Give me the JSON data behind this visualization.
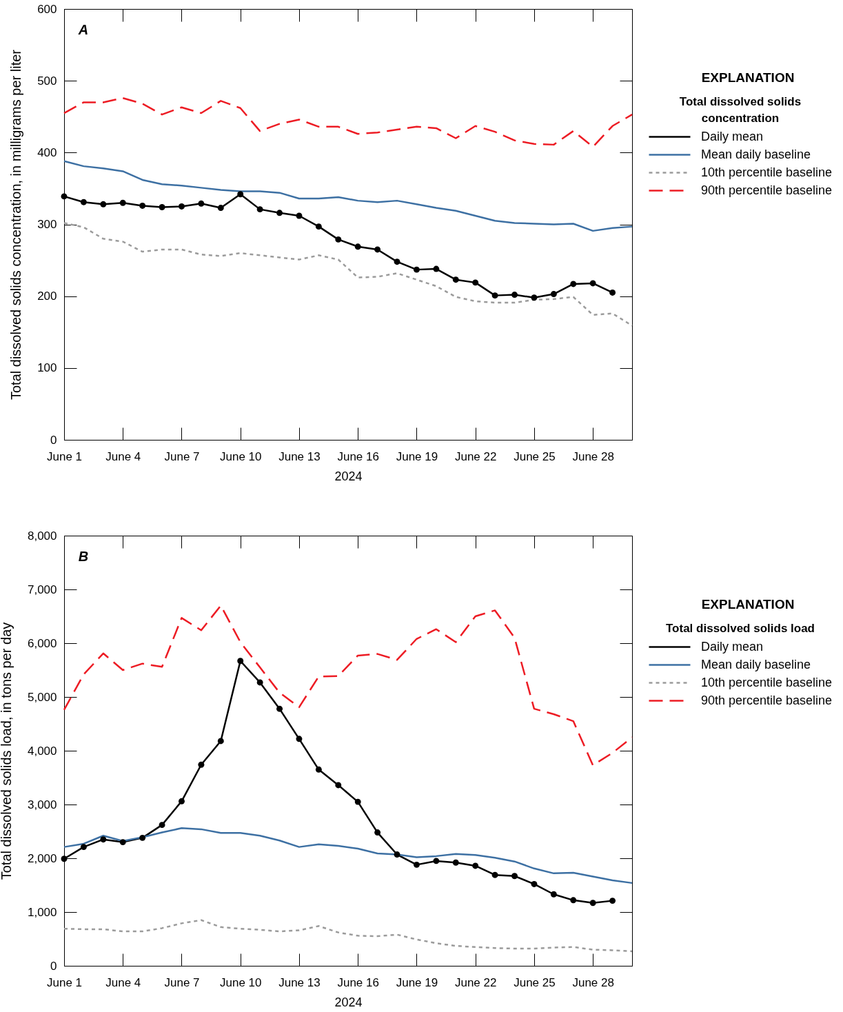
{
  "chart_data": [
    {
      "type": "line",
      "title": "A",
      "xlabel": "2024",
      "ylabel": "Total dissolved solids concentration, in milligrams per liter",
      "legend_title": "Total dissolved solids concentration",
      "annotations": [
        "EXPLANATION"
      ],
      "legend": "right",
      "grid": false,
      "x": [
        "2024-06-01",
        "2024-06-02",
        "2024-06-03",
        "2024-06-04",
        "2024-06-05",
        "2024-06-06",
        "2024-06-07",
        "2024-06-08",
        "2024-06-09",
        "2024-06-10",
        "2024-06-11",
        "2024-06-12",
        "2024-06-13",
        "2024-06-14",
        "2024-06-15",
        "2024-06-16",
        "2024-06-17",
        "2024-06-18",
        "2024-06-19",
        "2024-06-20",
        "2024-06-21",
        "2024-06-22",
        "2024-06-23",
        "2024-06-24",
        "2024-06-25",
        "2024-06-26",
        "2024-06-27",
        "2024-06-28",
        "2024-06-29",
        "2024-06-30"
      ],
      "xlim": [
        "2024-06-01",
        "2024-06-30"
      ],
      "xticks": [
        {
          "value": "2024-06-01",
          "label": "June 1"
        },
        {
          "value": "2024-06-04",
          "label": "June 4"
        },
        {
          "value": "2024-06-07",
          "label": "June 7"
        },
        {
          "value": "2024-06-10",
          "label": "June 10"
        },
        {
          "value": "2024-06-13",
          "label": "June 13"
        },
        {
          "value": "2024-06-16",
          "label": "June 16"
        },
        {
          "value": "2024-06-19",
          "label": "June 19"
        },
        {
          "value": "2024-06-22",
          "label": "June 22"
        },
        {
          "value": "2024-06-25",
          "label": "June 25"
        },
        {
          "value": "2024-06-28",
          "label": "June 28"
        }
      ],
      "ylim": [
        0,
        600
      ],
      "yticks": [
        0,
        100,
        200,
        300,
        400,
        500,
        600
      ],
      "series": [
        {
          "name": "Daily mean",
          "color": "#000000",
          "marker": "circle",
          "line_style": "solid",
          "values": [
            339,
            331,
            328,
            330,
            326,
            324,
            325,
            329,
            323,
            342,
            321,
            316,
            312,
            297,
            279,
            269,
            265,
            248,
            237,
            238,
            223,
            219,
            201,
            202,
            198,
            203,
            217,
            218,
            205,
            null
          ]
        },
        {
          "name": "Mean daily baseline",
          "color": "#3d70a3",
          "marker": "none",
          "line_style": "solid",
          "values": [
            388,
            381,
            378,
            374,
            362,
            356,
            354,
            351,
            348,
            346,
            346,
            344,
            336,
            336,
            338,
            333,
            331,
            333,
            328,
            323,
            319,
            312,
            305,
            302,
            301,
            300,
            301,
            291,
            295,
            297
          ]
        },
        {
          "name": "10th percentile baseline",
          "color": "#9b9b9b",
          "marker": "none",
          "line_style": "dotted",
          "values": [
            302,
            296,
            280,
            276,
            262,
            265,
            265,
            258,
            256,
            260,
            257,
            254,
            251,
            257,
            251,
            226,
            227,
            232,
            223,
            214,
            199,
            193,
            191,
            191,
            195,
            196,
            199,
            174,
            176,
            159
          ]
        },
        {
          "name": "90th percentile baseline",
          "color": "#ed1c24",
          "marker": "none",
          "line_style": "dashed",
          "values": [
            455,
            470,
            470,
            476,
            468,
            453,
            463,
            455,
            472,
            462,
            430,
            440,
            446,
            436,
            436,
            426,
            428,
            432,
            436,
            434,
            420,
            437,
            429,
            417,
            412,
            411,
            430,
            408,
            437,
            453
          ]
        }
      ]
    },
    {
      "type": "line",
      "title": "B",
      "xlabel": "2024",
      "ylabel": "Total dissolved solids load, in tons per day",
      "legend_title": "Total dissolved solids load",
      "annotations": [
        "EXPLANATION"
      ],
      "legend": "right",
      "grid": false,
      "x": [
        "2024-06-01",
        "2024-06-02",
        "2024-06-03",
        "2024-06-04",
        "2024-06-05",
        "2024-06-06",
        "2024-06-07",
        "2024-06-08",
        "2024-06-09",
        "2024-06-10",
        "2024-06-11",
        "2024-06-12",
        "2024-06-13",
        "2024-06-14",
        "2024-06-15",
        "2024-06-16",
        "2024-06-17",
        "2024-06-18",
        "2024-06-19",
        "2024-06-20",
        "2024-06-21",
        "2024-06-22",
        "2024-06-23",
        "2024-06-24",
        "2024-06-25",
        "2024-06-26",
        "2024-06-27",
        "2024-06-28",
        "2024-06-29",
        "2024-06-30"
      ],
      "xlim": [
        "2024-06-01",
        "2024-06-30"
      ],
      "xticks": [
        {
          "value": "2024-06-01",
          "label": "June 1"
        },
        {
          "value": "2024-06-04",
          "label": "June 4"
        },
        {
          "value": "2024-06-07",
          "label": "June 7"
        },
        {
          "value": "2024-06-10",
          "label": "June 10"
        },
        {
          "value": "2024-06-13",
          "label": "June 13"
        },
        {
          "value": "2024-06-16",
          "label": "June 16"
        },
        {
          "value": "2024-06-19",
          "label": "June 19"
        },
        {
          "value": "2024-06-22",
          "label": "June 22"
        },
        {
          "value": "2024-06-25",
          "label": "June 25"
        },
        {
          "value": "2024-06-28",
          "label": "June 28"
        }
      ],
      "ylim": [
        0,
        8000
      ],
      "yticks": [
        0,
        {
          "value": 1000,
          "label": "1,000"
        },
        {
          "value": 2000,
          "label": "2,000"
        },
        {
          "value": 3000,
          "label": "3,000"
        },
        {
          "value": 4000,
          "label": "4,000"
        },
        {
          "value": 5000,
          "label": "5,000"
        },
        {
          "value": 6000,
          "label": "6,000"
        },
        {
          "value": 7000,
          "label": "7,000"
        },
        {
          "value": 8000,
          "label": "8,000"
        }
      ],
      "series": [
        {
          "name": "Daily mean",
          "color": "#000000",
          "marker": "circle",
          "line_style": "solid",
          "values": [
            1990,
            2210,
            2350,
            2300,
            2380,
            2620,
            3060,
            3740,
            4180,
            5670,
            5270,
            4780,
            4220,
            3650,
            3360,
            3050,
            2480,
            2070,
            1880,
            1950,
            1920,
            1860,
            1690,
            1670,
            1520,
            1330,
            1220,
            1170,
            1210,
            null
          ]
        },
        {
          "name": "Mean daily baseline",
          "color": "#3d70a3",
          "marker": "none",
          "line_style": "solid",
          "values": [
            2210,
            2270,
            2420,
            2320,
            2390,
            2480,
            2560,
            2540,
            2470,
            2470,
            2420,
            2330,
            2210,
            2260,
            2230,
            2180,
            2090,
            2070,
            2020,
            2040,
            2080,
            2060,
            2010,
            1940,
            1810,
            1720,
            1730,
            1660,
            1590,
            1540
          ]
        },
        {
          "name": "10th percentile baseline",
          "color": "#9b9b9b",
          "marker": "none",
          "line_style": "dotted",
          "values": [
            690,
            680,
            680,
            640,
            640,
            700,
            790,
            850,
            720,
            690,
            670,
            640,
            660,
            740,
            620,
            560,
            550,
            580,
            490,
            420,
            370,
            350,
            330,
            320,
            320,
            340,
            350,
            300,
            290,
            270
          ]
        },
        {
          "name": "90th percentile baseline",
          "color": "#ed1c24",
          "marker": "none",
          "line_style": "dashed",
          "values": [
            4760,
            5420,
            5810,
            5500,
            5620,
            5560,
            6470,
            6240,
            6700,
            6020,
            5550,
            5080,
            4810,
            5380,
            5390,
            5770,
            5800,
            5690,
            6080,
            6260,
            6020,
            6500,
            6610,
            6100,
            4780,
            4680,
            4550,
            3730,
            3960,
            4250
          ]
        }
      ]
    }
  ]
}
